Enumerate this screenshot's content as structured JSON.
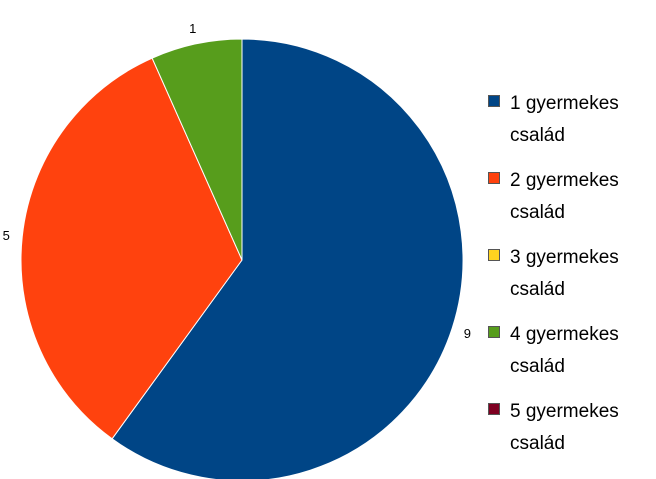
{
  "chart_data": {
    "type": "pie",
    "categories": [
      "1 gyermekes\ncsalád",
      "2 gyermekes\ncsalád",
      "3 gyermekes\ncsalád",
      "4 gyermekes\ncsalád",
      "5 gyermekes\ncsalád"
    ],
    "values": [
      9,
      5,
      0,
      1,
      0
    ],
    "value_labels": [
      "9",
      "5",
      "",
      "1",
      ""
    ],
    "colors": [
      "#004586",
      "#ff420e",
      "#ffd320",
      "#579d1c",
      "#7e0021"
    ],
    "title": "",
    "legend_position": "right"
  }
}
